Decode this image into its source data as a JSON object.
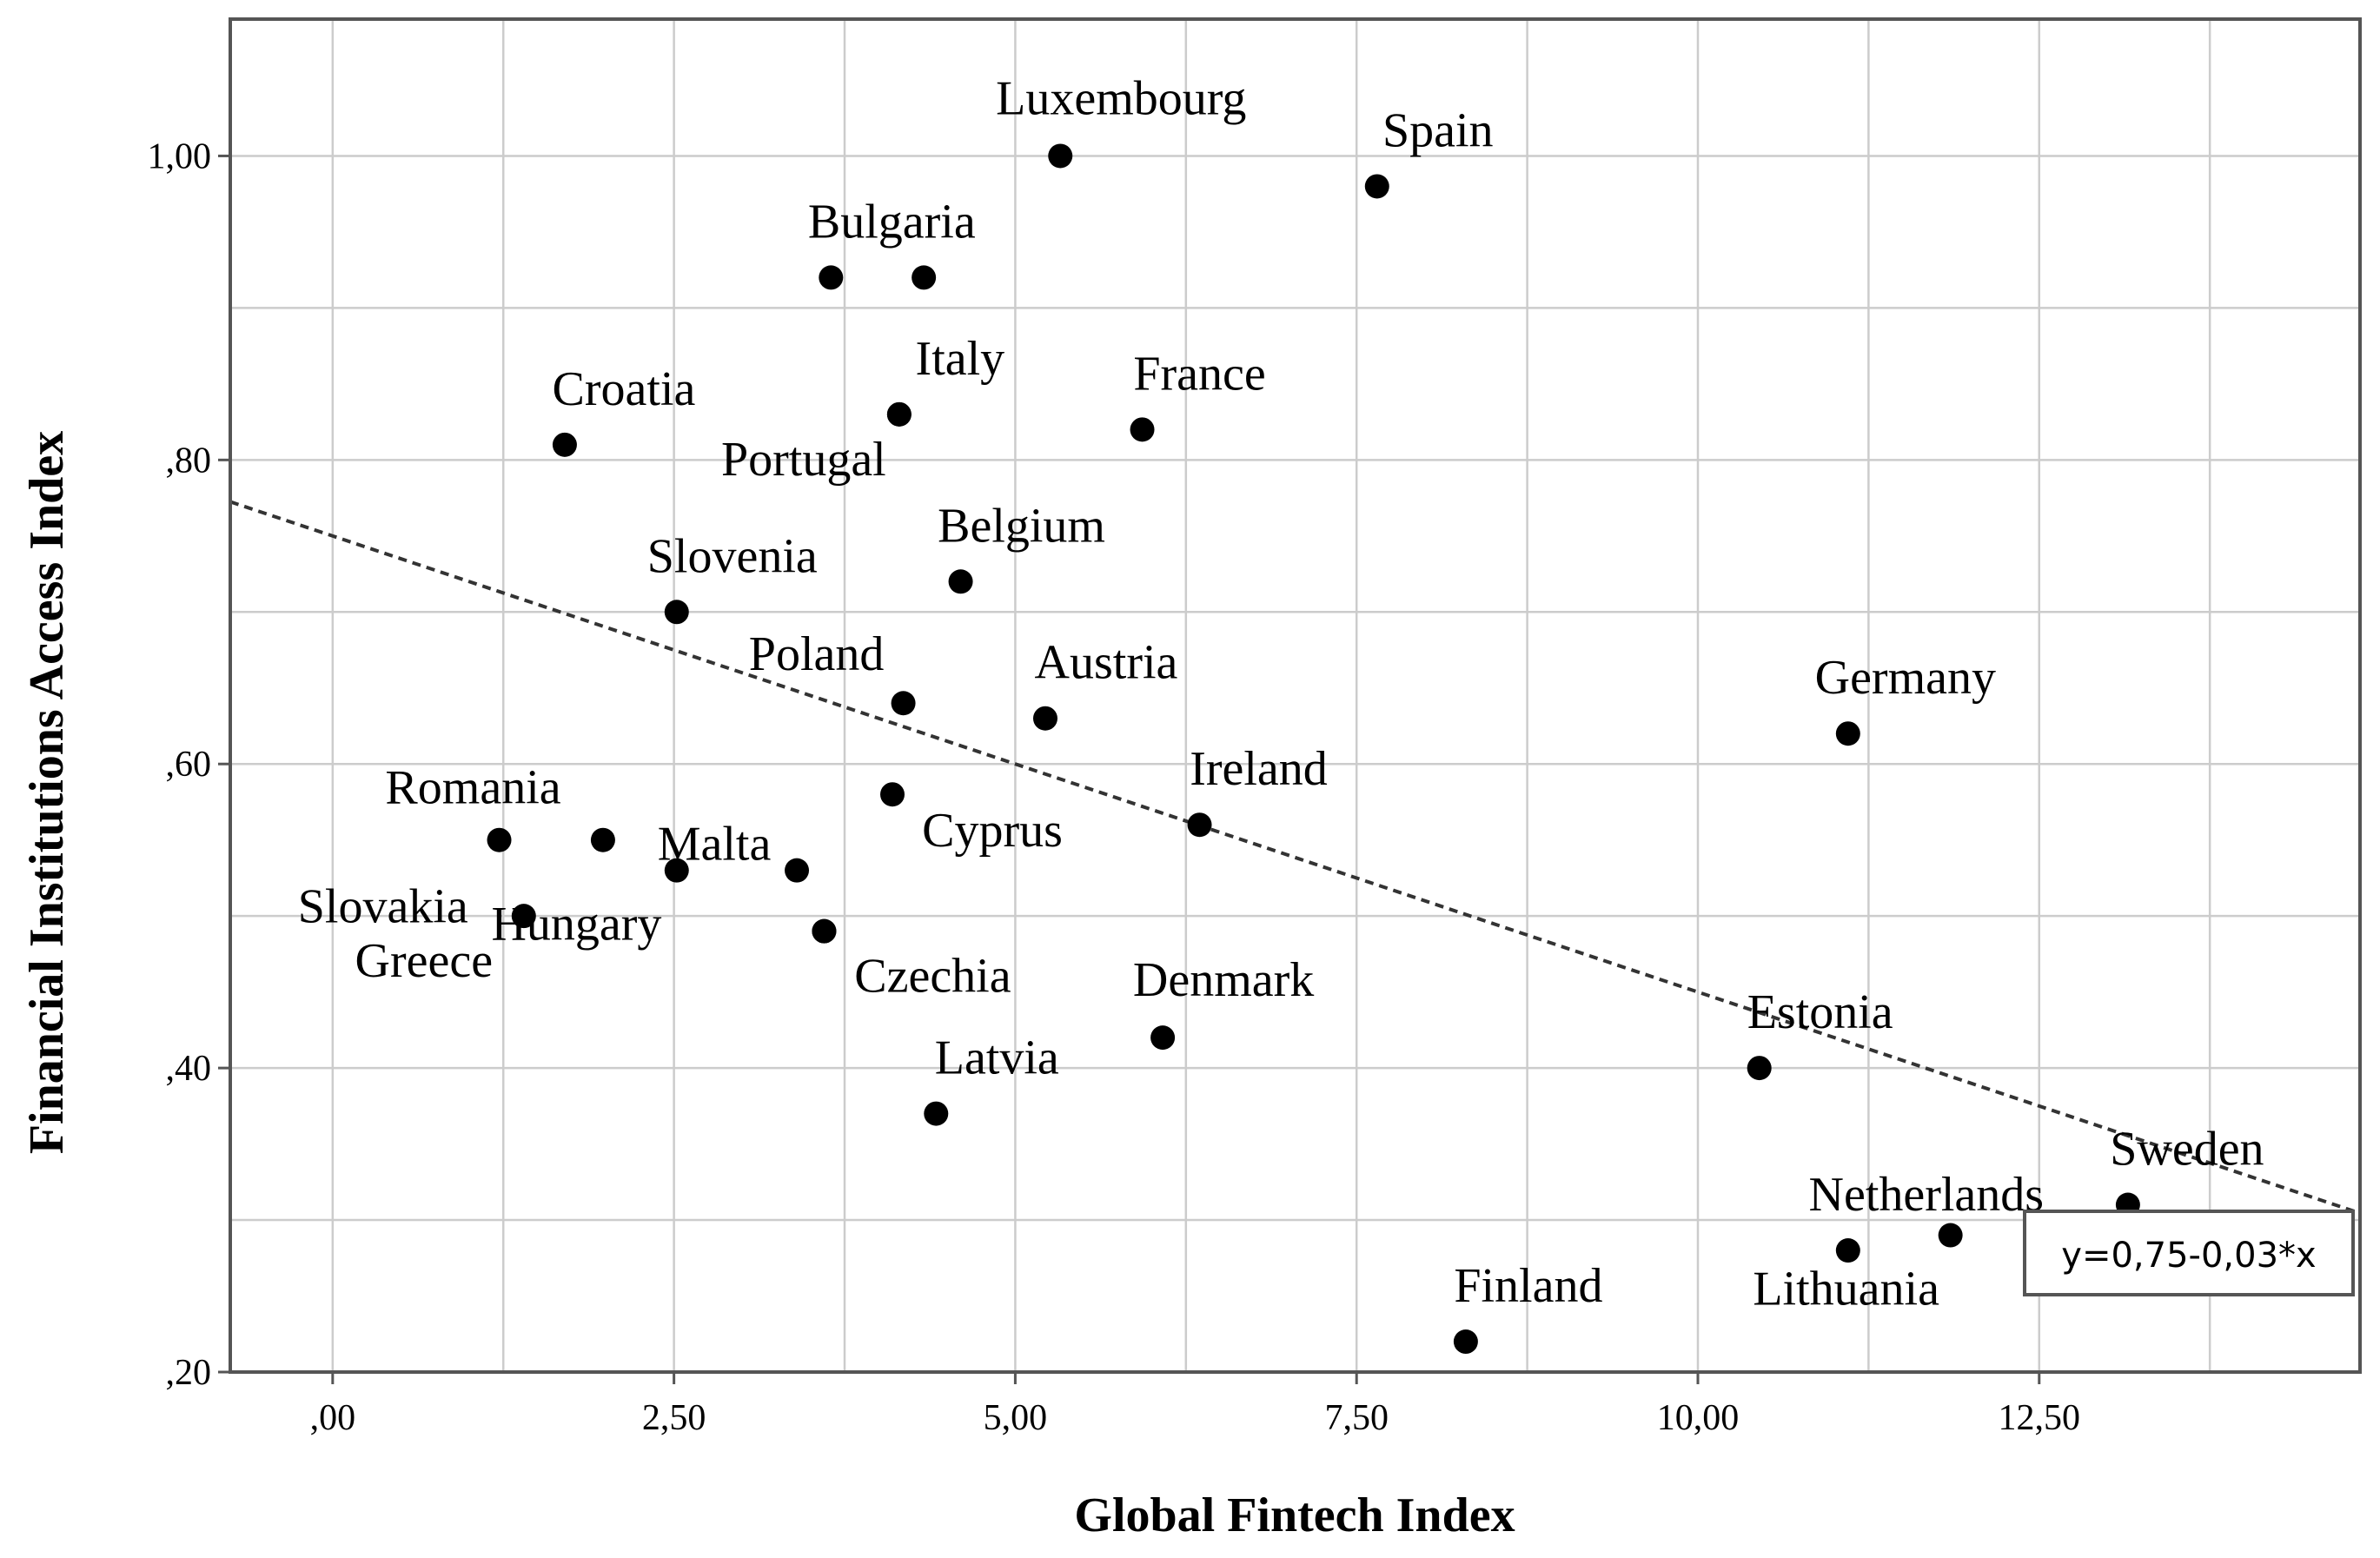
{
  "chart_data": {
    "type": "scatter",
    "xlabel": "Global Fintech Index",
    "ylabel": "Financial Institutions Access Index",
    "xlim": [
      -0.75,
      14.85
    ],
    "ylim": [
      0.2,
      1.09
    ],
    "x_ticks": [
      0,
      2.5,
      5,
      7.5,
      10,
      12.5
    ],
    "x_tick_labels": [
      ",00",
      "2,50",
      "5,00",
      "7,50",
      "10,00",
      "12,50"
    ],
    "y_ticks": [
      0.2,
      0.4,
      0.6,
      0.8,
      1.0
    ],
    "y_tick_labels": [
      ",20",
      ",40",
      ",60",
      ",80",
      "1,00"
    ],
    "minor_x_grid": [
      1.25,
      3.75,
      6.25,
      8.75,
      11.25,
      13.75
    ],
    "minor_y_grid": [
      0.3,
      0.5,
      0.7,
      0.9
    ],
    "grid": true,
    "colors": {
      "points": "#000000",
      "grid": "#cccccc",
      "frame": "#555555",
      "fit_line": "#333333"
    },
    "fit_line": {
      "intercept": 0.75,
      "slope": -0.03,
      "equation": "y=0,75-0,03*x",
      "style": "dashed"
    },
    "points": [
      {
        "label": "Luxembourg",
        "x": 5.33,
        "y": 1.0
      },
      {
        "label": "Spain",
        "x": 7.65,
        "y": 0.98
      },
      {
        "label": "Bulgaria",
        "x": 3.65,
        "y": 0.92
      },
      {
        "label": "",
        "x": 4.33,
        "y": 0.92
      },
      {
        "label": "Portugal",
        "x": 4.15,
        "y": 0.83
      },
      {
        "label": "Italy",
        "x": 4.15,
        "y": 0.83
      },
      {
        "label": "France",
        "x": 5.93,
        "y": 0.82
      },
      {
        "label": "Croatia",
        "x": 1.7,
        "y": 0.81
      },
      {
        "label": "Belgium",
        "x": 4.6,
        "y": 0.72
      },
      {
        "label": "Slovenia",
        "x": 2.52,
        "y": 0.7
      },
      {
        "label": "Poland",
        "x": 4.18,
        "y": 0.64
      },
      {
        "label": "Austria",
        "x": 5.22,
        "y": 0.63
      },
      {
        "label": "Germany",
        "x": 11.1,
        "y": 0.62
      },
      {
        "label": "Cyprus",
        "x": 4.1,
        "y": 0.58
      },
      {
        "label": "Ireland",
        "x": 6.35,
        "y": 0.56
      },
      {
        "label": "Romania",
        "x": 1.22,
        "y": 0.55
      },
      {
        "label": "",
        "x": 1.98,
        "y": 0.55
      },
      {
        "label": "Malta",
        "x": 3.4,
        "y": 0.53
      },
      {
        "label": "Slovakia",
        "x": 2.52,
        "y": 0.53
      },
      {
        "label": "Greece",
        "x": 1.4,
        "y": 0.5
      },
      {
        "label": "Hungary",
        "x": 3.6,
        "y": 0.49
      },
      {
        "label": "Czechia",
        "x": 3.6,
        "y": 0.49
      },
      {
        "label": "Denmark",
        "x": 6.08,
        "y": 0.42
      },
      {
        "label": "Estonia",
        "x": 10.45,
        "y": 0.4
      },
      {
        "label": "Latvia",
        "x": 4.42,
        "y": 0.37
      },
      {
        "label": "Sweden",
        "x": 13.15,
        "y": 0.31
      },
      {
        "label": "Lithuania",
        "x": 11.85,
        "y": 0.29
      },
      {
        "label": "Netherlands",
        "x": 11.1,
        "y": 0.28
      },
      {
        "label": "Finland",
        "x": 8.3,
        "y": 0.22
      }
    ]
  }
}
